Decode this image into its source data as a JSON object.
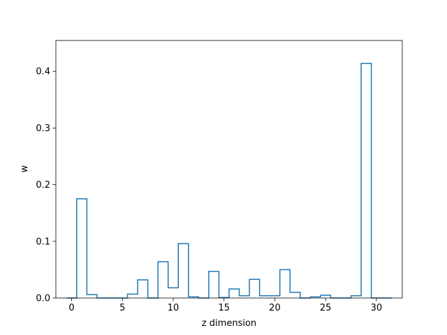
{
  "chart_data": {
    "type": "step",
    "title": "",
    "xlabel": "z dimension",
    "ylabel": "w",
    "xlim": [
      -1.55,
      32.55
    ],
    "ylim": [
      0.0,
      0.4545
    ],
    "xticks": [
      0,
      5,
      10,
      15,
      20,
      25,
      30
    ],
    "yticks": [
      0.0,
      0.1,
      0.2,
      0.3,
      0.4
    ],
    "ytick_labels": [
      "0.0",
      "0.1",
      "0.2",
      "0.3",
      "0.4"
    ],
    "grid": false,
    "legend": "none",
    "series": [
      {
        "color": "#1f77b4",
        "x": [
          0,
          1,
          2,
          3,
          4,
          5,
          6,
          7,
          8,
          9,
          10,
          11,
          12,
          13,
          14,
          15,
          16,
          17,
          18,
          19,
          20,
          21,
          22,
          23,
          24,
          25,
          26,
          27,
          28,
          29,
          30,
          31
        ],
        "values": [
          0.0,
          0.175,
          0.006,
          0.0,
          0.0,
          0.0,
          0.007,
          0.032,
          0.0,
          0.064,
          0.018,
          0.096,
          0.002,
          0.0,
          0.047,
          0.001,
          0.016,
          0.004,
          0.033,
          0.004,
          0.004,
          0.05,
          0.01,
          0.0,
          0.002,
          0.005,
          0.0,
          0.0,
          0.004,
          0.414,
          0.0,
          0.0
        ]
      }
    ]
  }
}
